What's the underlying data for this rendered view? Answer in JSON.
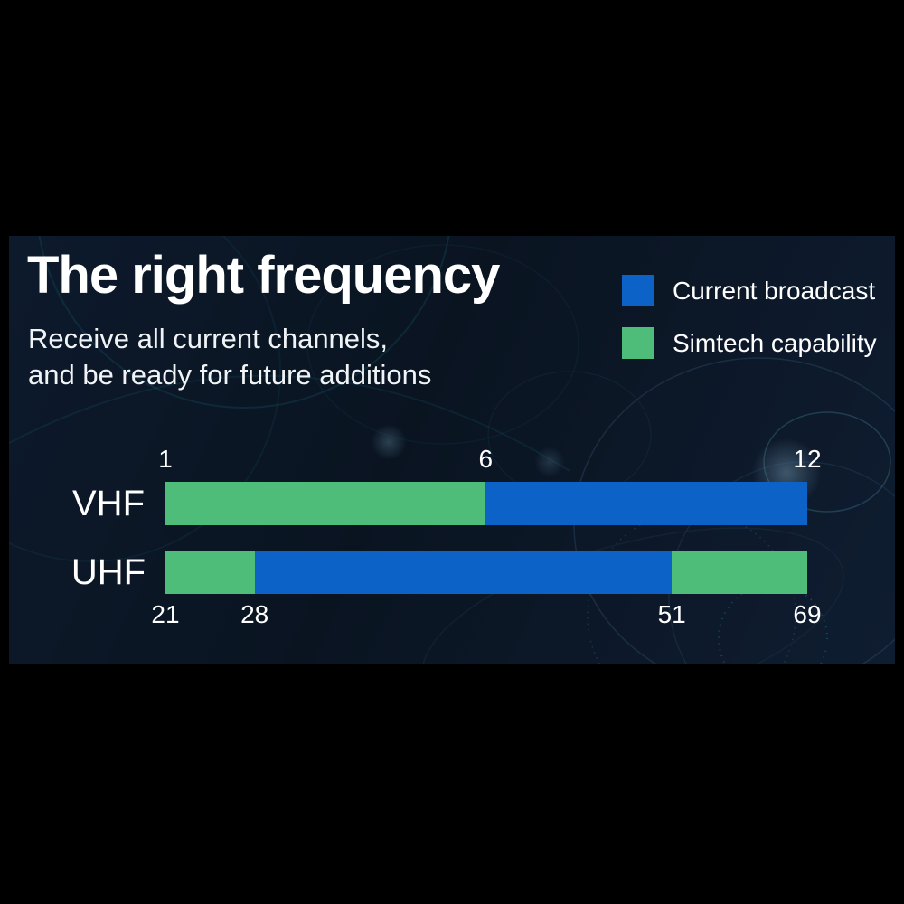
{
  "page": {
    "canvas_color": "#000000",
    "panel_color": "#0b1626",
    "text_color": "#ffffff"
  },
  "header": {
    "title": "The right frequency",
    "subtitle_line1": "Receive all current channels,",
    "subtitle_line2": "and be ready for future additions"
  },
  "legend": {
    "position": "top-right",
    "items": [
      {
        "label": "Current broadcast",
        "color": "#0c62c6"
      },
      {
        "label": "Simtech capability",
        "color": "#4ebd79"
      }
    ]
  },
  "chart_data": {
    "type": "bar",
    "orientation": "horizontal",
    "title": "The right frequency",
    "subtitle": "Receive all current channels, and be ready for future additions",
    "grid": false,
    "legend_position": "top-right",
    "series_colors": {
      "Current broadcast": "#0c62c6",
      "Simtech capability": "#4ebd79"
    },
    "rows": [
      {
        "category": "VHF",
        "tick_side": "above",
        "range": [
          1,
          12
        ],
        "ticks": [
          {
            "label": "1",
            "pos_pct": 0
          },
          {
            "label": "6",
            "pos_pct": 49.9
          },
          {
            "label": "12",
            "pos_pct": 100
          }
        ],
        "segments": [
          {
            "series": "Simtech capability",
            "from": 1,
            "to": 6,
            "color": "#4ebd79",
            "width_pct": 49.9
          },
          {
            "series": "Current broadcast",
            "from": 6,
            "to": 12,
            "color": "#0c62c6",
            "width_pct": 50.1
          }
        ]
      },
      {
        "category": "UHF",
        "tick_side": "below",
        "range": [
          21,
          69
        ],
        "ticks": [
          {
            "label": "21",
            "pos_pct": 0
          },
          {
            "label": "28",
            "pos_pct": 13.9
          },
          {
            "label": "51",
            "pos_pct": 78.9
          },
          {
            "label": "69",
            "pos_pct": 100
          }
        ],
        "segments": [
          {
            "series": "Simtech capability",
            "from": 21,
            "to": 28,
            "color": "#4ebd79",
            "width_pct": 13.9
          },
          {
            "series": "Current broadcast",
            "from": 28,
            "to": 51,
            "color": "#0c62c6",
            "width_pct": 65.0
          },
          {
            "series": "Simtech capability",
            "from": 51,
            "to": 69,
            "color": "#4ebd79",
            "width_pct": 21.1
          }
        ]
      }
    ]
  }
}
